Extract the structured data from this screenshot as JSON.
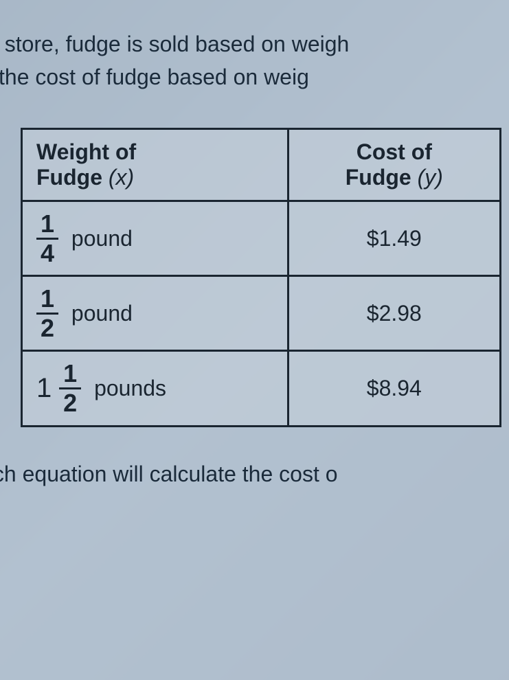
{
  "question": {
    "line1": "a store, fudge is sold based on weigh",
    "line2": "ws the cost of fudge based on weig"
  },
  "table": {
    "headers": {
      "weight_label": "Weight of",
      "weight_sub": "Fudge",
      "weight_var": "(x)",
      "cost_label": "Cost of",
      "cost_sub": "Fudge",
      "cost_var": "(y)"
    },
    "rows": [
      {
        "whole": "",
        "numerator": "1",
        "denominator": "4",
        "unit": "pound",
        "cost": "$1.49"
      },
      {
        "whole": "",
        "numerator": "1",
        "denominator": "2",
        "unit": "pound",
        "cost": "$2.98"
      },
      {
        "whole": "1",
        "numerator": "1",
        "denominator": "2",
        "unit": "pounds",
        "cost": "$8.94"
      }
    ]
  },
  "bottom_question": "hich equation will calculate the cost o",
  "styling": {
    "background_colors": [
      "#6b7a8a",
      "#a8b4c0",
      "#8a96a4"
    ],
    "text_color": "#1a2530",
    "border_color": "#1a2530",
    "border_width": 3,
    "font_family": "Arial",
    "question_fontsize": 32,
    "table_fontsize": 32,
    "fraction_fontsize": 36
  }
}
